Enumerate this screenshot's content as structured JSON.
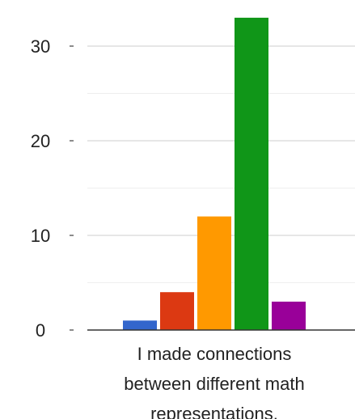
{
  "chart_data": {
    "type": "bar",
    "categories": [
      "I made connections between different math representations."
    ],
    "category_label_lines": [
      "I made connections",
      "between different math",
      "representations."
    ],
    "series": [
      {
        "values": [
          1
        ],
        "color": "#3366cc"
      },
      {
        "values": [
          4
        ],
        "color": "#dc3912"
      },
      {
        "values": [
          12
        ],
        "color": "#ff9900"
      },
      {
        "values": [
          33
        ],
        "color": "#109618"
      },
      {
        "values": [
          3
        ],
        "color": "#990099"
      }
    ],
    "y_ticks": [
      0,
      10,
      20,
      30
    ],
    "ylim": [
      0,
      33
    ],
    "grid": true,
    "legend": "none",
    "title": "",
    "xlabel": "",
    "ylabel": ""
  }
}
